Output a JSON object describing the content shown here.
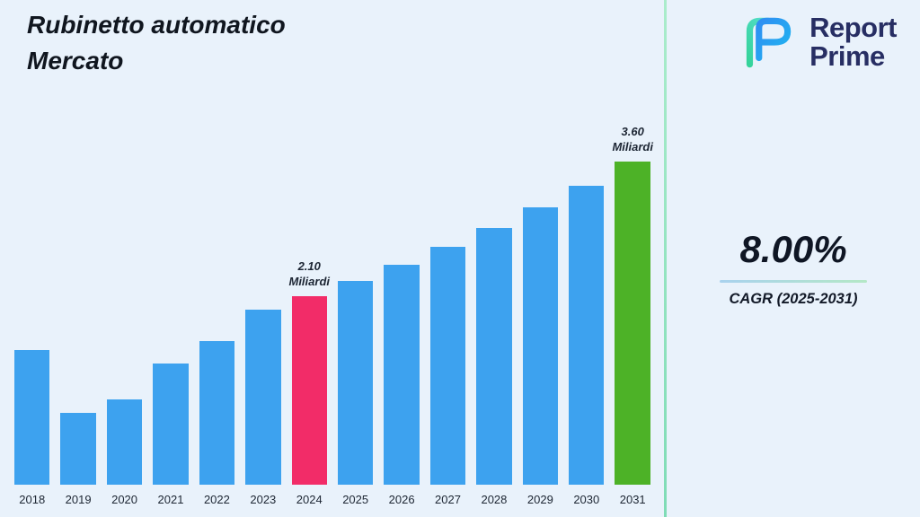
{
  "title": {
    "line1": "Rubinetto automatico",
    "line2": "Mercato"
  },
  "brand": {
    "name_line1": "Report",
    "name_line2": "Prime"
  },
  "cagr": {
    "value": "8.00%",
    "label": "CAGR (2025-2031)"
  },
  "chart_data": {
    "type": "bar",
    "title": "Rubinetto automatico Mercato",
    "unit": "Miliardi",
    "categories": [
      "2018",
      "2019",
      "2020",
      "2021",
      "2022",
      "2023",
      "2024",
      "2025",
      "2026",
      "2027",
      "2028",
      "2029",
      "2030",
      "2031"
    ],
    "values": [
      1.5,
      0.8,
      0.95,
      1.35,
      1.6,
      1.95,
      2.1,
      2.27,
      2.45,
      2.65,
      2.86,
      3.09,
      3.33,
      3.6
    ],
    "ylim": [
      0,
      3.9
    ],
    "grid": false,
    "legend": false,
    "annotations": [
      {
        "category": "2024",
        "lines": [
          "2.10",
          "Miliardi"
        ]
      },
      {
        "category": "2031",
        "lines": [
          "3.60",
          "Miliardi"
        ]
      }
    ],
    "colors": {
      "default": "#3DA2EF",
      "by_category": {
        "2024": "#F22C68",
        "2031": "#4DB227"
      }
    }
  },
  "colors": {
    "background": "#E9F2FB",
    "title_text": "#10161F",
    "brand_text": "#272E63",
    "divider": "#8BE0BC",
    "accent_blue": "#3DA2EF",
    "accent_pink": "#F22C68",
    "accent_green": "#4DB227"
  }
}
